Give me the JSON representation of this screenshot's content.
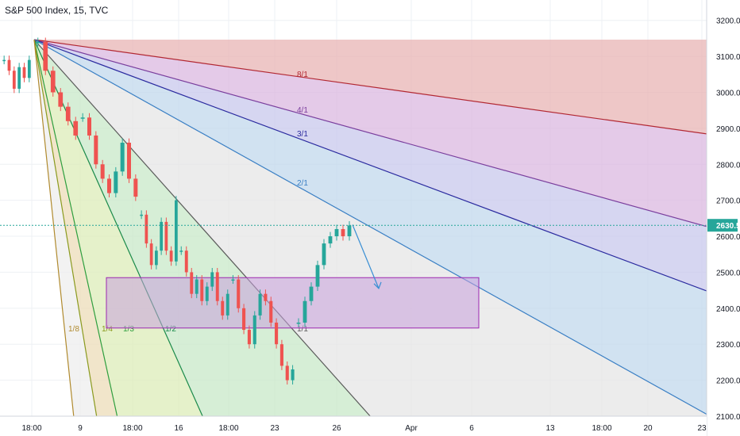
{
  "header": {
    "title": "S&P 500 Index, 15, TVC"
  },
  "chart_data": {
    "type": "line",
    "instrument": "S&P 500 Index",
    "interval": "15",
    "source": "TVC",
    "ylim": [
      2100,
      3250
    ],
    "y_ticks": [
      "3200.0",
      "3100.0",
      "3000.0",
      "2900.0",
      "2800.0",
      "2700.0",
      "2600.0",
      "2500.0",
      "2400.0",
      "2300.0",
      "2200.0",
      "2100.0"
    ],
    "x_ticks": [
      "18:00",
      "9",
      "18:00",
      "16",
      "18:00",
      "23",
      "26",
      "Apr",
      "6",
      "13",
      "18:00",
      "20",
      "23"
    ],
    "last_price": {
      "label": "2630.5",
      "value": 2630.5,
      "color": "#26a69a"
    },
    "gann_fan": {
      "lines": [
        {
          "name": "8/1",
          "color": "#b22833"
        },
        {
          "name": "4/1",
          "color": "#7a3e9d"
        },
        {
          "name": "3/1",
          "color": "#2a2a9f"
        },
        {
          "name": "2/1",
          "color": "#3a7fc4"
        },
        {
          "name": "1/1",
          "color": "#5a5a5a"
        },
        {
          "name": "1/2",
          "color": "#1a8a4a"
        },
        {
          "name": "1/3",
          "color": "#2e9e3e"
        },
        {
          "name": "1/4",
          "color": "#8a9a1e"
        },
        {
          "name": "1/8",
          "color": "#b08a2e"
        }
      ],
      "fills": [
        "#e8b4b4",
        "#dbb8e0",
        "#c8c8ec",
        "#c2d8ec",
        "#e6e6e6",
        "#c8e8c8",
        "#dcecb8",
        "#ecdcb8"
      ]
    },
    "rectangle": {
      "y_low": 2345,
      "y_high": 2485,
      "color": "#9c27b0",
      "fill": "#c9a0dc"
    },
    "arrow": {
      "color": "#3a8fd4",
      "y_start": 2632,
      "y_end": 2455
    },
    "price_series": {
      "color_up": "#26a69a",
      "color_down": "#ef5350",
      "segments": [
        [
          3090,
          3060,
          3010,
          3070,
          3040,
          3090
        ],
        [
          3140,
          3060,
          3000,
          2960,
          2920,
          2880
        ],
        [
          2930,
          2880,
          2800,
          2760,
          2720,
          2780,
          2860,
          2760,
          2710
        ],
        [
          2660,
          2580,
          2520,
          2560,
          2640,
          2560,
          2530,
          2700
        ],
        [
          2560,
          2500,
          2440,
          2480,
          2420,
          2460,
          2500,
          2420,
          2380,
          2440
        ],
        [
          2480,
          2400,
          2340,
          2300,
          2380,
          2440,
          2420,
          2360,
          2300,
          2240,
          2200,
          2230
        ],
        [
          2360,
          2420,
          2460,
          2520,
          2580,
          2600,
          2620,
          2600,
          2630
        ]
      ]
    },
    "grid": true
  }
}
